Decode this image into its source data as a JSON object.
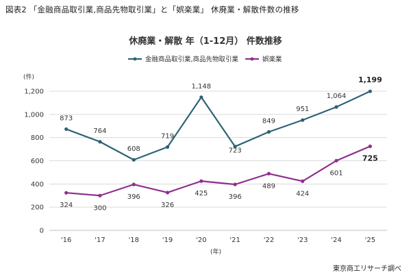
{
  "figure_title": "図表2 「金融商品取引業,商品先物取引業」と「娯楽業」 休廃業・解散件数の推移",
  "credit": "東京商工リサーチ調べ",
  "colors": {
    "series_a": "#2d6275",
    "series_b": "#8e2f8e",
    "grid": "#d9d9d9",
    "axis": "#bfbfbf"
  },
  "chart_data": {
    "type": "line",
    "title": "休廃業・解散 年（1-12月） 件数推移",
    "ylabel": "(件)",
    "xlabel": "(年)",
    "ylim": [
      0,
      1200
    ],
    "yticks": [
      0,
      200,
      400,
      600,
      800,
      1000,
      1200
    ],
    "ytick_labels": [
      "0",
      "200",
      "400",
      "600",
      "800",
      "1,000",
      "1,200"
    ],
    "categories": [
      "'16",
      "'17",
      "'18",
      "'19",
      "'20",
      "'21",
      "'22",
      "'23",
      "'24",
      "'25"
    ],
    "legend_position": "top",
    "grid": true,
    "series": [
      {
        "name": "金融商品取引業,商品先物取引業",
        "values": [
          873,
          764,
          608,
          719,
          1148,
          723,
          849,
          951,
          1064,
          1199
        ],
        "labels": [
          "873",
          "764",
          "608",
          "719",
          "1,148",
          "723",
          "849",
          "951",
          "1,064",
          "1,199"
        ]
      },
      {
        "name": "娯楽業",
        "values": [
          324,
          300,
          396,
          326,
          425,
          396,
          489,
          424,
          601,
          725
        ],
        "labels": [
          "324",
          "300",
          "396",
          "326",
          "425",
          "396",
          "489",
          "424",
          "601",
          "725"
        ]
      }
    ]
  }
}
